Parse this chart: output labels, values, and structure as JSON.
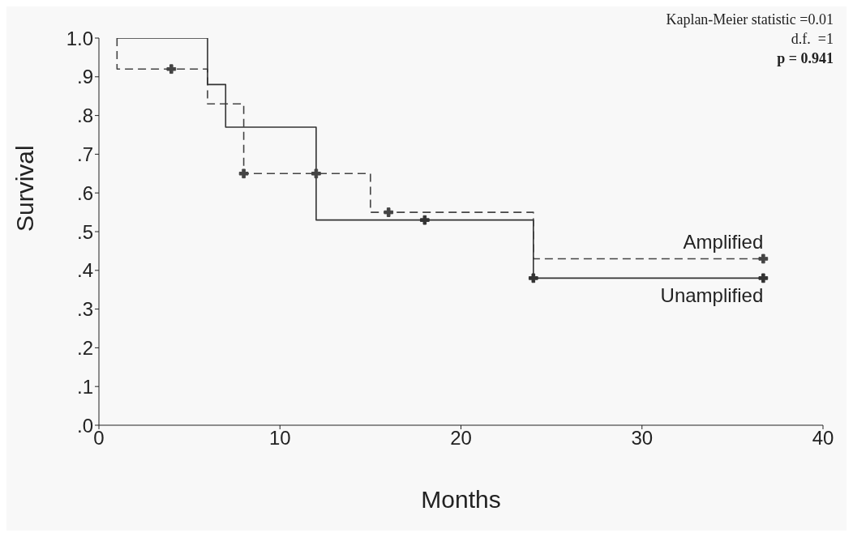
{
  "chart_data": {
    "type": "step",
    "xlabel": "Months",
    "ylabel": "Survival",
    "xlim": [
      0,
      40
    ],
    "xticks": [
      0,
      10,
      20,
      30,
      40
    ],
    "ylim": [
      0,
      1
    ],
    "yticks": [
      {
        "value": 0,
        "label": ".0"
      },
      {
        "value": 0.1,
        "label": ".1"
      },
      {
        "value": 0.2,
        "label": ".2"
      },
      {
        "value": 0.3,
        "label": ".3"
      },
      {
        "value": 0.4,
        "label": ".4"
      },
      {
        "value": 0.5,
        "label": ".5"
      },
      {
        "value": 0.6,
        "label": ".6"
      },
      {
        "value": 0.7,
        "label": ".7"
      },
      {
        "value": 0.8,
        "label": ".8"
      },
      {
        "value": 0.9,
        "label": ".9"
      },
      {
        "value": 1,
        "label": "1.0"
      }
    ],
    "grid": false,
    "legend": false,
    "marker": "none",
    "series": [
      {
        "name": "Amplified",
        "color": "#444444",
        "line_style": "dashed",
        "x": [
          1,
          1,
          6,
          8,
          15,
          24,
          36.7
        ],
        "values": [
          1,
          0.92,
          0.83,
          0.65,
          0.55,
          0.43,
          0.43
        ]
      },
      {
        "name": "Unamplified",
        "color": "#333333",
        "line_style": "solid",
        "x": [
          1,
          6,
          7,
          12,
          24,
          36.7
        ],
        "values": [
          1,
          0.88,
          0.77,
          0.53,
          0.38,
          0.38
        ]
      },
      {
        "type": "scatter",
        "marker": "cross",
        "color": "#444444",
        "x": [
          4,
          8,
          12,
          16,
          36.7
        ],
        "values": [
          0.92,
          0.65,
          0.65,
          0.55,
          0.43
        ]
      },
      {
        "type": "scatter",
        "marker": "cross",
        "color": "#333333",
        "x": [
          18,
          24,
          36.7
        ],
        "values": [
          0.53,
          0.38,
          0.38
        ]
      }
    ],
    "annotations": [
      "Kaplan-Meier statistic =0.01",
      "d.f.  =1",
      "p = 0.941"
    ]
  }
}
